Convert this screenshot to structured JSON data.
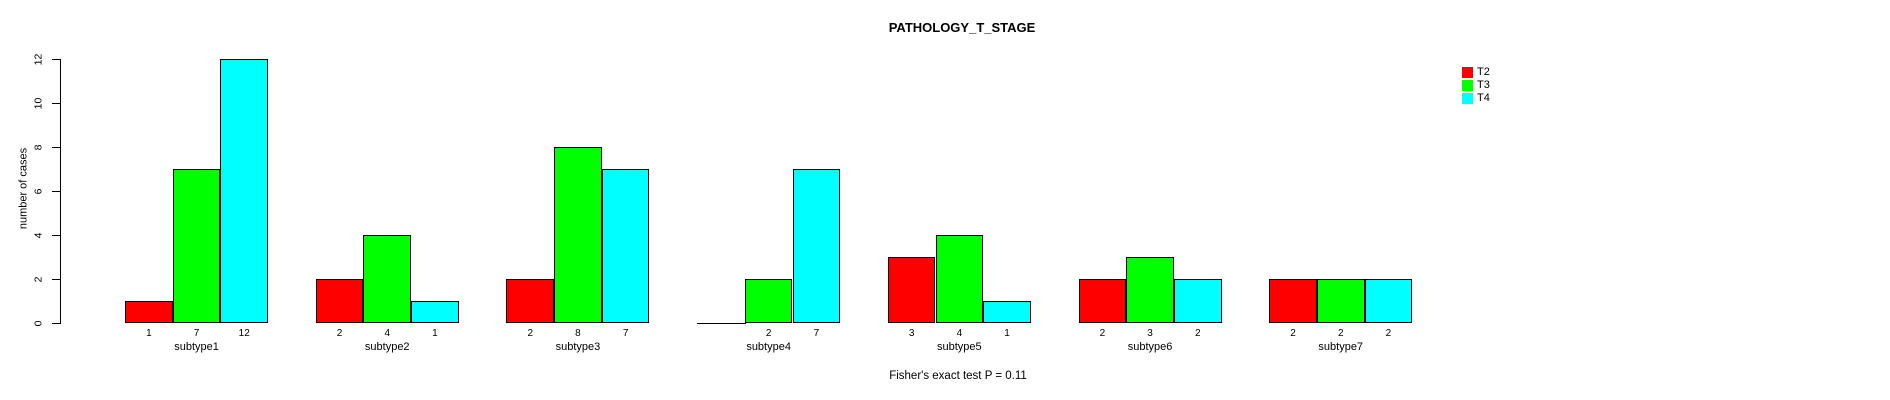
{
  "chart_data": {
    "type": "bar",
    "title": "PATHOLOGY_T_STAGE",
    "xlabel": "",
    "ylabel": "number of cases",
    "categories": [
      "subtype1",
      "subtype2",
      "subtype3",
      "subtype4",
      "subtype5",
      "subtype6",
      "subtype7"
    ],
    "series": [
      {
        "name": "T2",
        "color": "#ff0000",
        "values": [
          1,
          2,
          2,
          0,
          3,
          2,
          2
        ]
      },
      {
        "name": "T3",
        "color": "#00ff00",
        "values": [
          7,
          4,
          8,
          2,
          4,
          3,
          2
        ]
      },
      {
        "name": "T4",
        "color": "#00ffff",
        "values": [
          12,
          1,
          7,
          7,
          1,
          2,
          2
        ]
      }
    ],
    "ylim": [
      0,
      12
    ],
    "yticks": [
      0,
      2,
      4,
      6,
      8,
      10,
      12
    ],
    "grid": false,
    "legend_position": "top-right",
    "bar_value_labels": true,
    "bar_value_label_hidden_when_zero": true,
    "annotation": "Fisher's exact test P = 0.11"
  }
}
